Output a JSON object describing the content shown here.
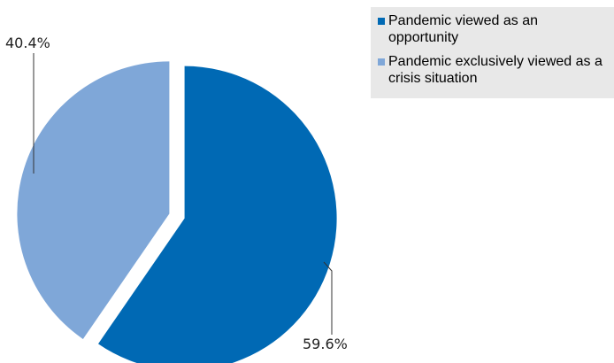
{
  "chart_data": {
    "type": "pie",
    "title": "",
    "slices": [
      {
        "label": "Pandemic viewed as an opportunity",
        "value": 59.6,
        "value_label": "59.6%",
        "color": "#0069b4"
      },
      {
        "label": "Pandemic exclusively viewed as a crisis situation",
        "value": 40.4,
        "value_label": "40.4%",
        "color": "#7fa7d8"
      }
    ],
    "legend_position": "top-right",
    "exploded": true
  }
}
